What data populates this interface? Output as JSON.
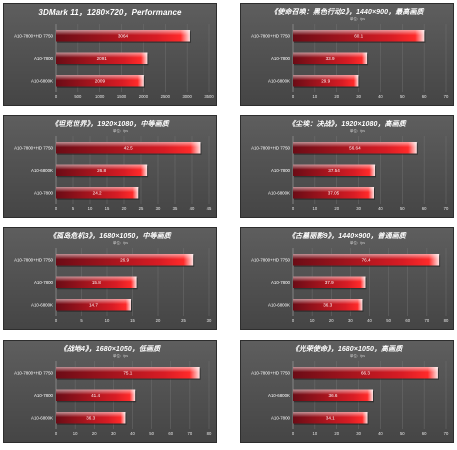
{
  "units_label": "单位：fps",
  "colors": {
    "panel_bg": "#4f4f4f",
    "bar_dark": "#6b0c16",
    "bar_bright": "#ff2a2a",
    "bar_top": "#ffffff"
  },
  "chart_data": [
    {
      "type": "bar",
      "orientation": "horizontal",
      "title": "3DMark 11，1280×720，Performance",
      "categories": [
        "A10-7800+HD 7750",
        "A10-7800",
        "A10-6800K"
      ],
      "values": [
        3064,
        2091,
        2009
      ],
      "xlim": [
        0,
        3500
      ],
      "xticks": [
        0,
        500,
        1000,
        1500,
        2000,
        2500,
        3000,
        3500
      ]
    },
    {
      "type": "bar",
      "orientation": "horizontal",
      "title": "《使命召唤：黑色行动2》，1440×900，最高画质",
      "categories": [
        "A10-7800+HD 7750",
        "A10-7800",
        "A10-6800K"
      ],
      "values": [
        60.1,
        33.9,
        29.9
      ],
      "xlim": [
        0,
        70
      ],
      "xticks": [
        0,
        10,
        20,
        30,
        40,
        50,
        60,
        70
      ]
    },
    {
      "type": "bar",
      "orientation": "horizontal",
      "title": "《坦克世界》，1920×1080，中等画质",
      "categories": [
        "A10-7800+HD 7750",
        "A10-6800K",
        "A10-7800"
      ],
      "values": [
        42.5,
        26.8,
        24.2
      ],
      "xlim": [
        0,
        45
      ],
      "xticks": [
        0,
        5,
        10,
        15,
        20,
        25,
        30,
        35,
        40,
        45
      ]
    },
    {
      "type": "bar",
      "orientation": "horizontal",
      "title": "《尘埃：决战》，1920×1080，高画质",
      "categories": [
        "A10-7800+HD 7750",
        "A10-7800",
        "A10-6800K"
      ],
      "values": [
        56.64,
        37.54,
        37.05
      ],
      "xlim": [
        0,
        70
      ],
      "xticks": [
        0,
        10,
        20,
        30,
        40,
        50,
        60,
        70
      ]
    },
    {
      "type": "bar",
      "orientation": "horizontal",
      "title": "《孤岛危机3》，1680×1050，中等画质",
      "categories": [
        "A10-7800+HD 7750",
        "A10-7800",
        "A10-6800K"
      ],
      "values": [
        26.9,
        15.8,
        14.7
      ],
      "xlim": [
        0,
        30
      ],
      "xticks": [
        0,
        5,
        10,
        15,
        20,
        25,
        30
      ]
    },
    {
      "type": "bar",
      "orientation": "horizontal",
      "title": "《古墓丽影9》，1440×900，普通画质",
      "categories": [
        "A10-7800+HD 7750",
        "A10-7800",
        "A10-6800K"
      ],
      "values": [
        76.4,
        37.9,
        36.3
      ],
      "xlim": [
        0,
        80
      ],
      "xticks": [
        0,
        10,
        20,
        30,
        40,
        50,
        60,
        70,
        80
      ]
    },
    {
      "type": "bar",
      "orientation": "horizontal",
      "title": "《战地4》，1680×1050，低画质",
      "categories": [
        "A10-7800+HD 7750",
        "A10-7800",
        "A10-6800K"
      ],
      "values": [
        75.1,
        41.4,
        36.3
      ],
      "xlim": [
        0,
        80
      ],
      "xticks": [
        0,
        10,
        20,
        30,
        40,
        50,
        60,
        70,
        80
      ]
    },
    {
      "type": "bar",
      "orientation": "horizontal",
      "title": "《光荣使命》，1680×1050，高画质",
      "categories": [
        "A10-7800+HD 7750",
        "A10-6800K",
        "A10-7800"
      ],
      "values": [
        66.3,
        36.6,
        34.1
      ],
      "xlim": [
        0,
        70
      ],
      "xticks": [
        0,
        10,
        20,
        30,
        40,
        50,
        60,
        70
      ]
    }
  ]
}
